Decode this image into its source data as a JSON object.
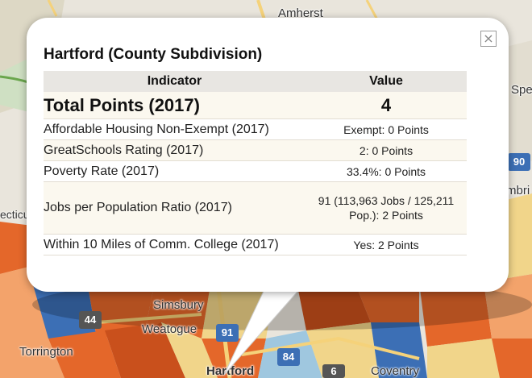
{
  "popup": {
    "title": "Hartford (County Subdivision)",
    "close_symbol": "×",
    "headers": {
      "indicator": "Indicator",
      "value": "Value"
    },
    "total": {
      "label": "Total Points (2017)",
      "value": "4"
    },
    "rows": [
      {
        "indicator": "Affordable Housing Non-Exempt (2017)",
        "value": "Exempt: 0 Points"
      },
      {
        "indicator": "GreatSchools Rating (2017)",
        "value": "2: 0 Points"
      },
      {
        "indicator": "Poverty Rate (2017)",
        "value": "33.4%: 0 Points"
      },
      {
        "indicator": "Jobs per Population Ratio (2017)",
        "value": "91 (113,963 Jobs / 125,211 Pop.): 2 Points"
      },
      {
        "indicator": "Within 10 Miles of Comm. College (2017)",
        "value": "Yes: 2 Points"
      }
    ]
  },
  "map": {
    "labels": {
      "amherst": "Amherst",
      "spe": "Spe",
      "mbri": "mbri",
      "ecticu": "ecticu",
      "simsbury": "Simsbury",
      "weatogue": "Weatogue",
      "torrington": "Torrington",
      "hartford": "Hartford",
      "coventry": "Coventry"
    },
    "shields": {
      "i90": "90",
      "us44": "44",
      "i91": "91",
      "i84": "84",
      "rt6": "6"
    },
    "colors": {
      "orange": "#e4672a",
      "dark_orange": "#c9501c",
      "light_orange": "#f3a36b",
      "yellow": "#f1d58a",
      "light_blue": "#9fc7df",
      "blue": "#3c6fb5",
      "water": "#a9c6e4",
      "base": "#e9e5dc"
    }
  }
}
